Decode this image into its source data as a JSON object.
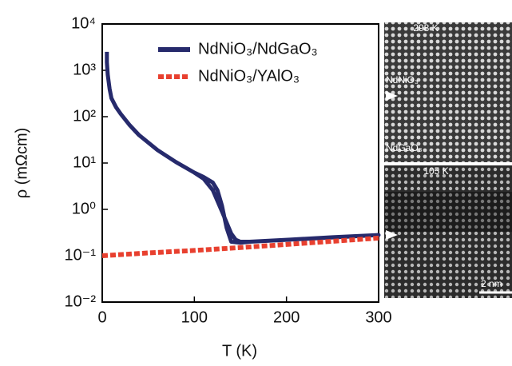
{
  "chart_data": {
    "type": "line",
    "xlabel": "T (K)",
    "ylabel": "ρ (mΩcm)",
    "log_y": true,
    "xlim": [
      0,
      300
    ],
    "ylim": [
      0.01,
      10000
    ],
    "xticks": [
      0,
      100,
      200,
      300
    ],
    "yticks": [
      {
        "value": 0.01,
        "label": "10⁻²"
      },
      {
        "value": 0.1,
        "label": "10⁻¹"
      },
      {
        "value": 1,
        "label": "10⁰"
      },
      {
        "value": 10,
        "label": "10¹"
      },
      {
        "value": 100,
        "label": "10²"
      },
      {
        "value": 1000,
        "label": "10³"
      },
      {
        "value": 10000,
        "label": "10⁴"
      }
    ],
    "legend": "upper right",
    "series": [
      {
        "name": "NdNiO₃/NdGaO₃",
        "color": "#262a6c",
        "style": "solid",
        "x": [
          5,
          5,
          6,
          8,
          10,
          15,
          20,
          30,
          40,
          60,
          80,
          100,
          110,
          120,
          130,
          140,
          145,
          150,
          160,
          200,
          250,
          300,
          160,
          150,
          140,
          135,
          130,
          125,
          120,
          110,
          100
        ],
        "values": [
          2500,
          1500,
          800,
          400,
          250,
          160,
          115,
          65,
          40,
          19,
          10.5,
          6.2,
          4.6,
          2.6,
          0.9,
          0.3,
          0.22,
          0.2,
          0.2,
          0.22,
          0.25,
          0.28,
          0.2,
          0.19,
          0.2,
          0.4,
          1.2,
          2.6,
          3.8,
          5,
          6.2
        ]
      },
      {
        "name": "NdNiO₃/YAlO₃",
        "color": "#e8402f",
        "style": "dashed",
        "x": [
          0,
          50,
          100,
          150,
          200,
          250,
          300
        ],
        "values": [
          0.1,
          0.115,
          0.13,
          0.15,
          0.175,
          0.205,
          0.24
        ]
      }
    ]
  },
  "images": {
    "top": {
      "temperature": "298 K",
      "film": "NdNiO₃",
      "substrate": "NdGaO₃"
    },
    "bottom": {
      "temperature": "105 K",
      "scale": "2 nm"
    }
  }
}
